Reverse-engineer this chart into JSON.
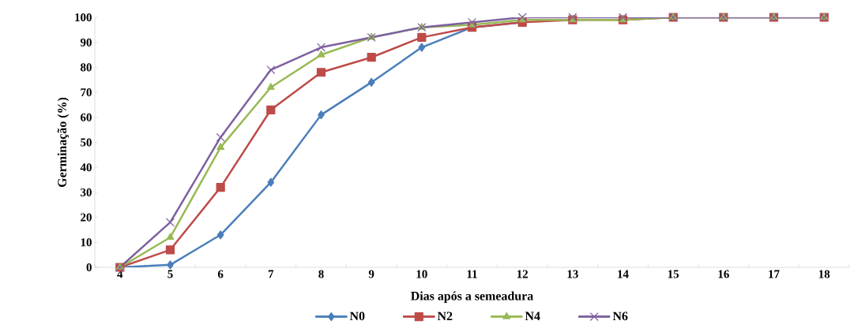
{
  "chart_data": {
    "type": "line",
    "xlabel": "Dias após a semeadura",
    "ylabel": "Germinação (%)",
    "categories": [
      "4",
      "5",
      "6",
      "7",
      "8",
      "9",
      "10",
      "11",
      "12",
      "13",
      "14",
      "15",
      "16",
      "17",
      "18"
    ],
    "ylim": [
      0,
      100
    ],
    "yticks": [
      0,
      10,
      20,
      30,
      40,
      50,
      60,
      70,
      80,
      90,
      100
    ],
    "grid": false,
    "legend": "bottom",
    "line_style": "solid",
    "series": [
      {
        "name": "N0",
        "color": "#4a7ebb",
        "marker": "diamond",
        "values": [
          0,
          1,
          13,
          34,
          61,
          74,
          88,
          96,
          98,
          null,
          null,
          null,
          null,
          null,
          null
        ]
      },
      {
        "name": "N2",
        "color": "#be4b48",
        "marker": "square",
        "values": [
          0,
          7,
          32,
          63,
          78,
          84,
          92,
          96,
          98,
          99,
          99,
          100,
          100,
          100,
          100
        ]
      },
      {
        "name": "N4",
        "color": "#98b954",
        "marker": "triangle",
        "values": [
          0,
          12,
          48,
          72,
          85,
          92,
          96,
          97,
          99,
          99,
          99,
          100,
          100,
          100,
          100
        ]
      },
      {
        "name": "N6",
        "color": "#7d60a0",
        "marker": "cross",
        "values": [
          0,
          18,
          52,
          79,
          88,
          92,
          96,
          98,
          100,
          100,
          100,
          100,
          100,
          100,
          100
        ]
      }
    ]
  }
}
